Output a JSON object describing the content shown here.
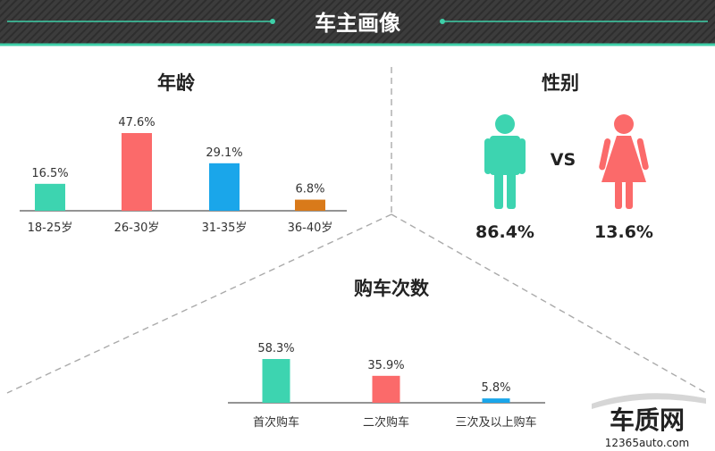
{
  "header": {
    "title": "车主画像"
  },
  "colors": {
    "header_bg": "#3a3a3a",
    "accent_line": "#3ecfa8",
    "teal": "#3dd4b0",
    "red": "#fb6a6a",
    "blue": "#1aa6ea",
    "orange": "#d97a1a",
    "divider": "#aaaaaa"
  },
  "age": {
    "title": "年龄"
  },
  "gender": {
    "title": "性别",
    "vs_label": "VS",
    "male": {
      "percent_label": "86.4%",
      "icon": "male-icon"
    },
    "female": {
      "percent_label": "13.6%",
      "icon": "female-icon"
    }
  },
  "purchase": {
    "title": "购车次数"
  },
  "watermark": {
    "logo_text": "车质网",
    "url_text": "12365auto.com"
  },
  "chart_data": [
    {
      "type": "bar",
      "title": "年龄",
      "categories": [
        "18-25岁",
        "26-30岁",
        "31-35岁",
        "36-40岁"
      ],
      "values": [
        16.5,
        47.6,
        29.1,
        6.8
      ],
      "value_labels": [
        "16.5%",
        "47.6%",
        "29.1%",
        "6.8%"
      ],
      "bar_colors": [
        "#3dd4b0",
        "#fb6a6a",
        "#1aa6ea",
        "#d97a1a"
      ],
      "ylim": [
        0,
        50
      ],
      "grid": false
    },
    {
      "type": "bar",
      "title": "性别",
      "categories": [
        "男",
        "女"
      ],
      "values": [
        86.4,
        13.6
      ],
      "value_labels": [
        "86.4%",
        "13.6%"
      ]
    },
    {
      "type": "bar",
      "title": "购车次数",
      "categories": [
        "首次购车",
        "二次购车",
        "三次及以上购车"
      ],
      "values": [
        58.3,
        35.9,
        5.8
      ],
      "value_labels": [
        "58.3%",
        "35.9%",
        "5.8%"
      ],
      "bar_colors": [
        "#3dd4b0",
        "#fb6a6a",
        "#1aa6ea"
      ],
      "ylim": [
        0,
        60
      ],
      "grid": false
    }
  ]
}
